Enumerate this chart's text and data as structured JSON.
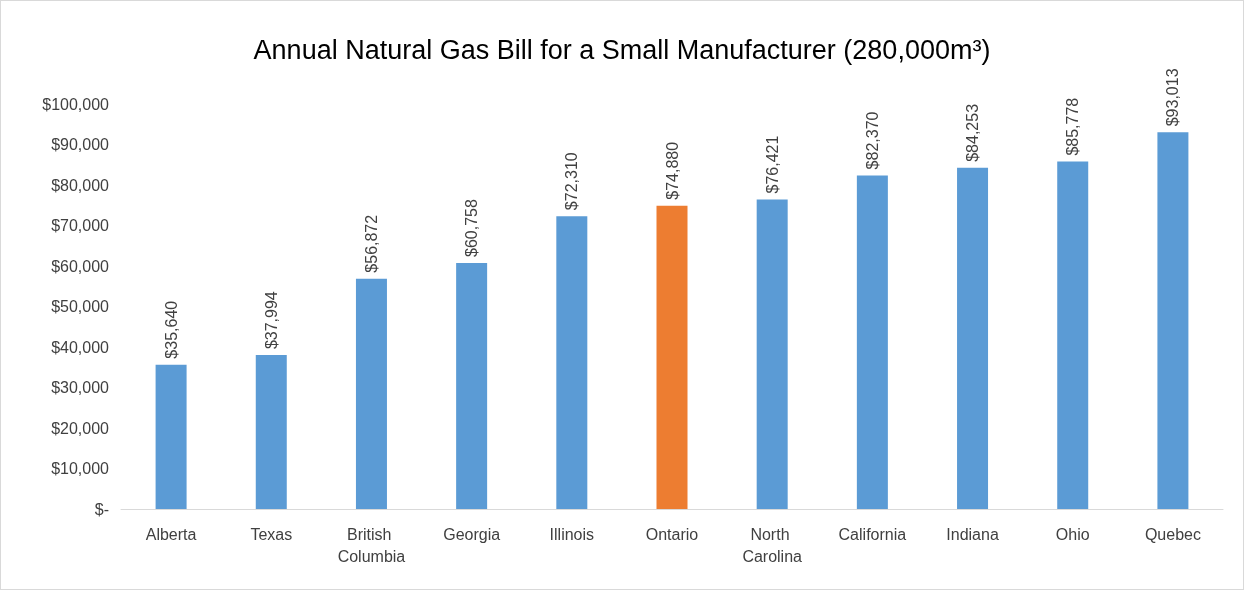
{
  "chart_data": {
    "type": "bar",
    "title": "Annual Natural Gas Bill for a Small Manufacturer (280,000m³)",
    "categories": [
      "Alberta",
      "Texas",
      "British Columbia",
      "Georgia",
      "Illinois",
      "Ontario",
      "North Carolina",
      "California",
      "Indiana",
      "Ohio",
      "Quebec"
    ],
    "values": [
      35640,
      37994,
      56872,
      60758,
      72310,
      74880,
      76421,
      82370,
      84253,
      85778,
      93013
    ],
    "colors": [
      "#5b9bd5",
      "#5b9bd5",
      "#5b9bd5",
      "#5b9bd5",
      "#5b9bd5",
      "#ed7d31",
      "#5b9bd5",
      "#5b9bd5",
      "#5b9bd5",
      "#5b9bd5",
      "#5b9bd5"
    ],
    "value_labels": [
      "$35,640",
      "$37,994",
      "$56,872",
      "$60,758",
      "$72,310",
      "$74,880",
      "$76,421",
      "$82,370",
      "$84,253",
      "$85,778",
      "$93,013"
    ],
    "ylim": [
      0,
      100000
    ],
    "yticks": [
      {
        "value": 0,
        "label": "$-"
      },
      {
        "value": 10000,
        "label": "$10,000"
      },
      {
        "value": 20000,
        "label": "$20,000"
      },
      {
        "value": 30000,
        "label": "$30,000"
      },
      {
        "value": 40000,
        "label": "$40,000"
      },
      {
        "value": 50000,
        "label": "$50,000"
      },
      {
        "value": 60000,
        "label": "$60,000"
      },
      {
        "value": 70000,
        "label": "$70,000"
      },
      {
        "value": 80000,
        "label": "$80,000"
      },
      {
        "value": 90000,
        "label": "$90,000"
      },
      {
        "value": 100000,
        "label": "$100,000"
      }
    ]
  }
}
